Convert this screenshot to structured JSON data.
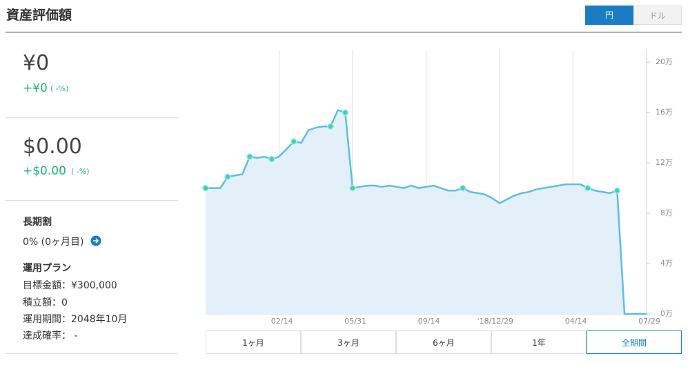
{
  "header": {
    "title": "資産評価額",
    "currency_toggle": [
      "円",
      "ドル"
    ]
  },
  "summary": {
    "yen": {
      "value": "¥0",
      "change": "+¥0",
      "change_pct": "( -%)"
    },
    "usd": {
      "value": "$0.00",
      "change": "+$0.00",
      "change_pct": "( -%)"
    },
    "discount": {
      "title": "長期割",
      "value": "0% (0ヶ月目)"
    },
    "plan": {
      "title": "運用プラン",
      "items": [
        "目標金額：¥300,000",
        "積立額：0",
        "運用期間：2048年10月",
        "達成確率： -"
      ]
    }
  },
  "chart_data": {
    "type": "line",
    "categories": [
      null,
      null,
      null,
      null,
      null,
      null,
      null,
      null,
      null,
      null,
      "02/14",
      null,
      null,
      null,
      null,
      null,
      null,
      null,
      null,
      null,
      "05/31",
      null,
      null,
      null,
      null,
      null,
      null,
      null,
      null,
      null,
      "09/14",
      null,
      null,
      null,
      null,
      null,
      null,
      null,
      null,
      null,
      "'18/12/29",
      null,
      null,
      null,
      null,
      null,
      null,
      null,
      null,
      null,
      "04/14",
      null,
      null,
      null,
      null,
      null,
      null,
      null,
      null,
      null,
      "07/29"
    ],
    "series": [
      {
        "style": "line",
        "color": "#5cbde9",
        "area_color": "#e3f0fa",
        "values": [
          10.0,
          10.0,
          10.0,
          10.9,
          11.0,
          11.1,
          12.5,
          12.4,
          12.5,
          12.3,
          12.5,
          13.1,
          13.7,
          13.6,
          14.6,
          14.8,
          14.9,
          14.9,
          16.2,
          16.0,
          10.0,
          10.1,
          10.2,
          10.2,
          10.1,
          10.2,
          10.1,
          10.0,
          10.2,
          10.0,
          10.1,
          10.2,
          10.0,
          9.8,
          9.8,
          10.0,
          9.7,
          9.6,
          9.5,
          9.2,
          8.8,
          9.1,
          9.4,
          9.6,
          9.7,
          9.9,
          10.0,
          10.1,
          10.2,
          10.3,
          10.3,
          10.3,
          10.0,
          9.8,
          9.7,
          9.6,
          9.8,
          0,
          0,
          0,
          0
        ]
      },
      {
        "style": "points",
        "color": "#3dd5b1",
        "values": [
          10.0,
          null,
          null,
          10.9,
          null,
          null,
          12.5,
          null,
          null,
          12.3,
          null,
          null,
          13.7,
          null,
          null,
          null,
          null,
          14.9,
          null,
          16.0,
          10.0,
          null,
          null,
          null,
          null,
          null,
          null,
          null,
          null,
          null,
          null,
          null,
          null,
          null,
          null,
          10.0,
          null,
          null,
          null,
          null,
          null,
          null,
          null,
          null,
          null,
          null,
          null,
          null,
          null,
          null,
          null,
          null,
          10.0,
          null,
          null,
          null,
          9.8,
          null,
          null,
          null,
          null
        ]
      }
    ],
    "ylim": [
      0,
      21
    ],
    "yticks": [
      {
        "value": 0,
        "label": "0万"
      },
      {
        "value": 4,
        "label": "4万"
      },
      {
        "value": 8,
        "label": "8万"
      },
      {
        "value": 12,
        "label": "12万"
      },
      {
        "value": 16,
        "label": "16万"
      },
      {
        "value": 20,
        "label": "20万"
      }
    ],
    "grid": true
  },
  "period_buttons": {
    "labels": [
      "1ヶ月",
      "3ヶ月",
      "6ヶ月",
      "1年",
      "全期間"
    ],
    "selected": 4
  }
}
